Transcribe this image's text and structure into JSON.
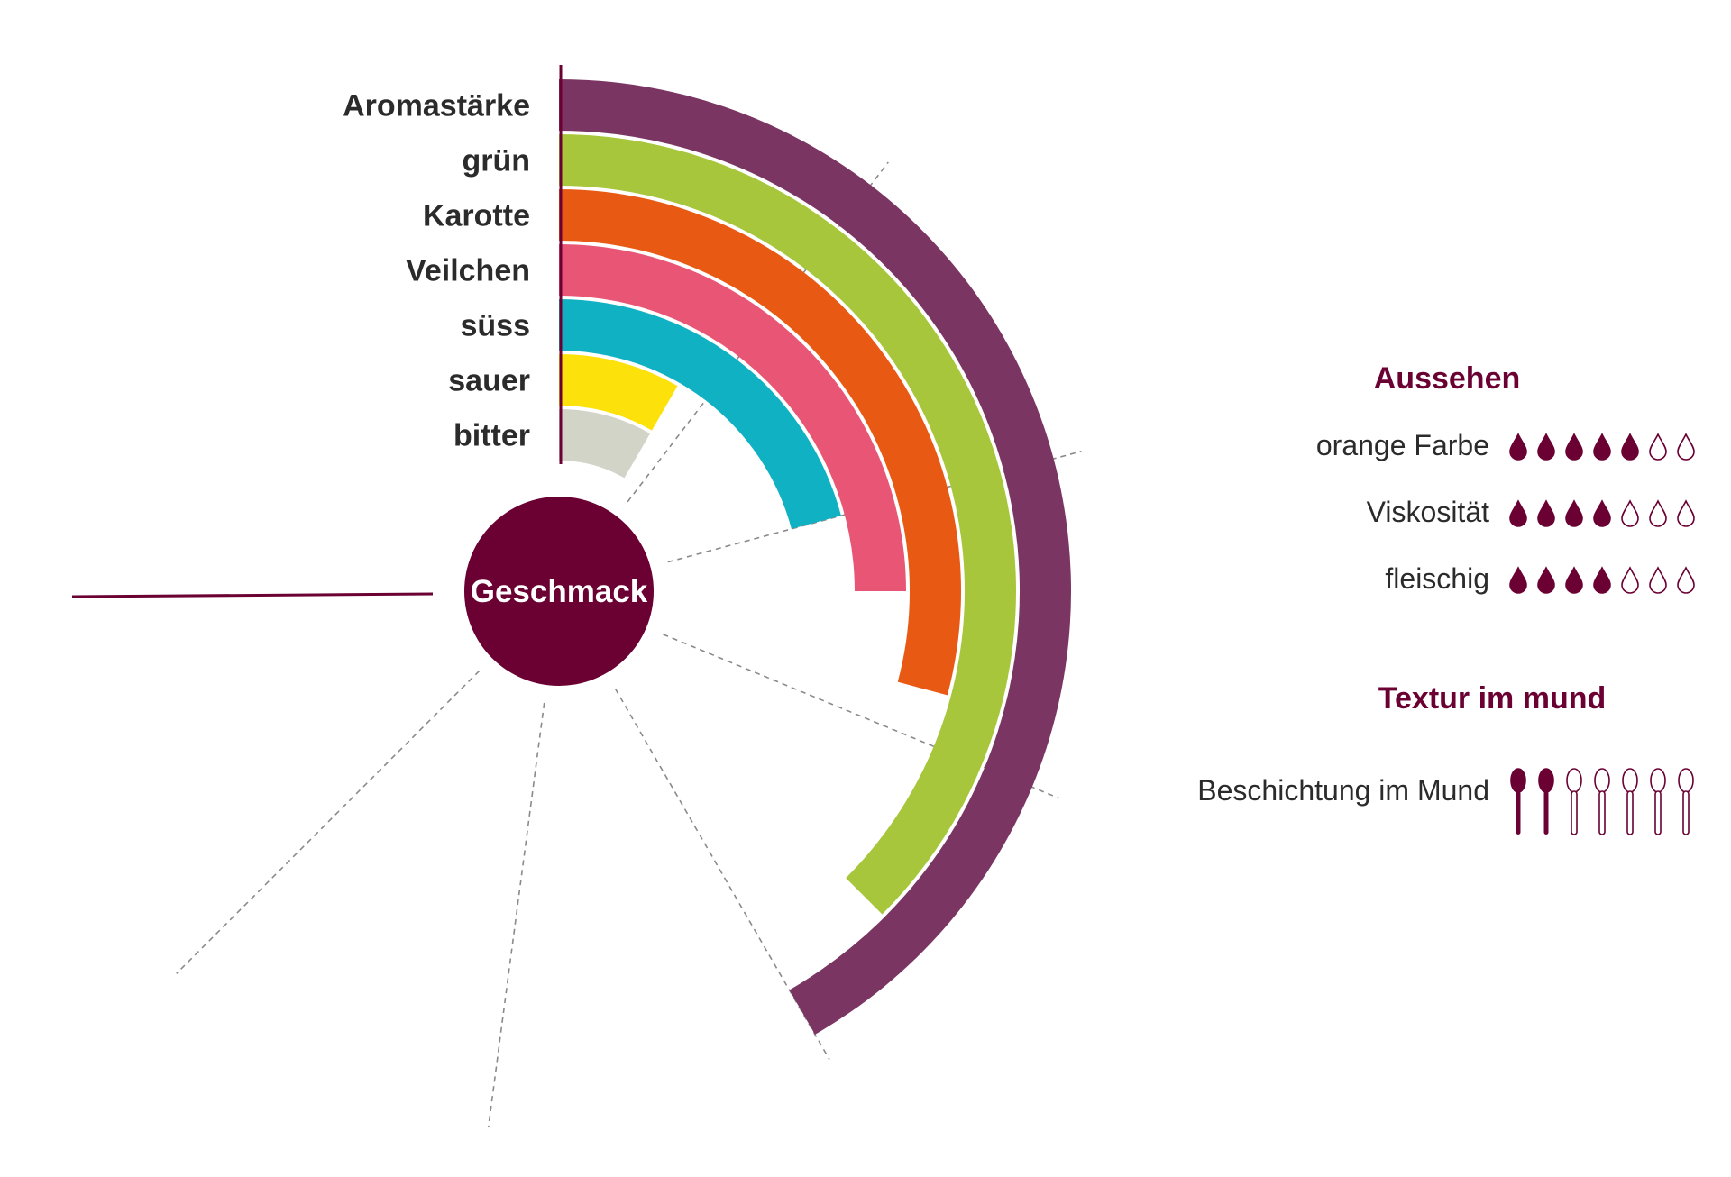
{
  "chart_data": {
    "type": "radial-bar",
    "center_label": "Geschmack",
    "categories": [
      "Aromastärke",
      "grün",
      "Karotte",
      "Veilchen",
      "süss",
      "sauer",
      "bitter"
    ],
    "values": [
      5,
      4.5,
      3.5,
      3,
      2.5,
      1,
      1
    ],
    "max": 5,
    "colors": [
      "#7b3562",
      "#a8c63b",
      "#e85a14",
      "#e95575",
      "#10b1c2",
      "#fde10a",
      "#d3d4c8"
    ],
    "accent": "#6b0033"
  },
  "panels": {
    "aussehen": {
      "title": "Aussehen",
      "items": [
        {
          "label": "orange Farbe",
          "value": 5,
          "max": 7,
          "icon": "drop-icon"
        },
        {
          "label": "Viskosität",
          "value": 4,
          "max": 7,
          "icon": "drop-icon"
        },
        {
          "label": "fleischig",
          "value": 4,
          "max": 7,
          "icon": "drop-icon"
        }
      ]
    },
    "textur": {
      "title": "Textur im mund",
      "items": [
        {
          "label": "Beschichtung im Mund",
          "value": 2,
          "max": 7,
          "icon": "spoon-icon"
        }
      ]
    }
  }
}
